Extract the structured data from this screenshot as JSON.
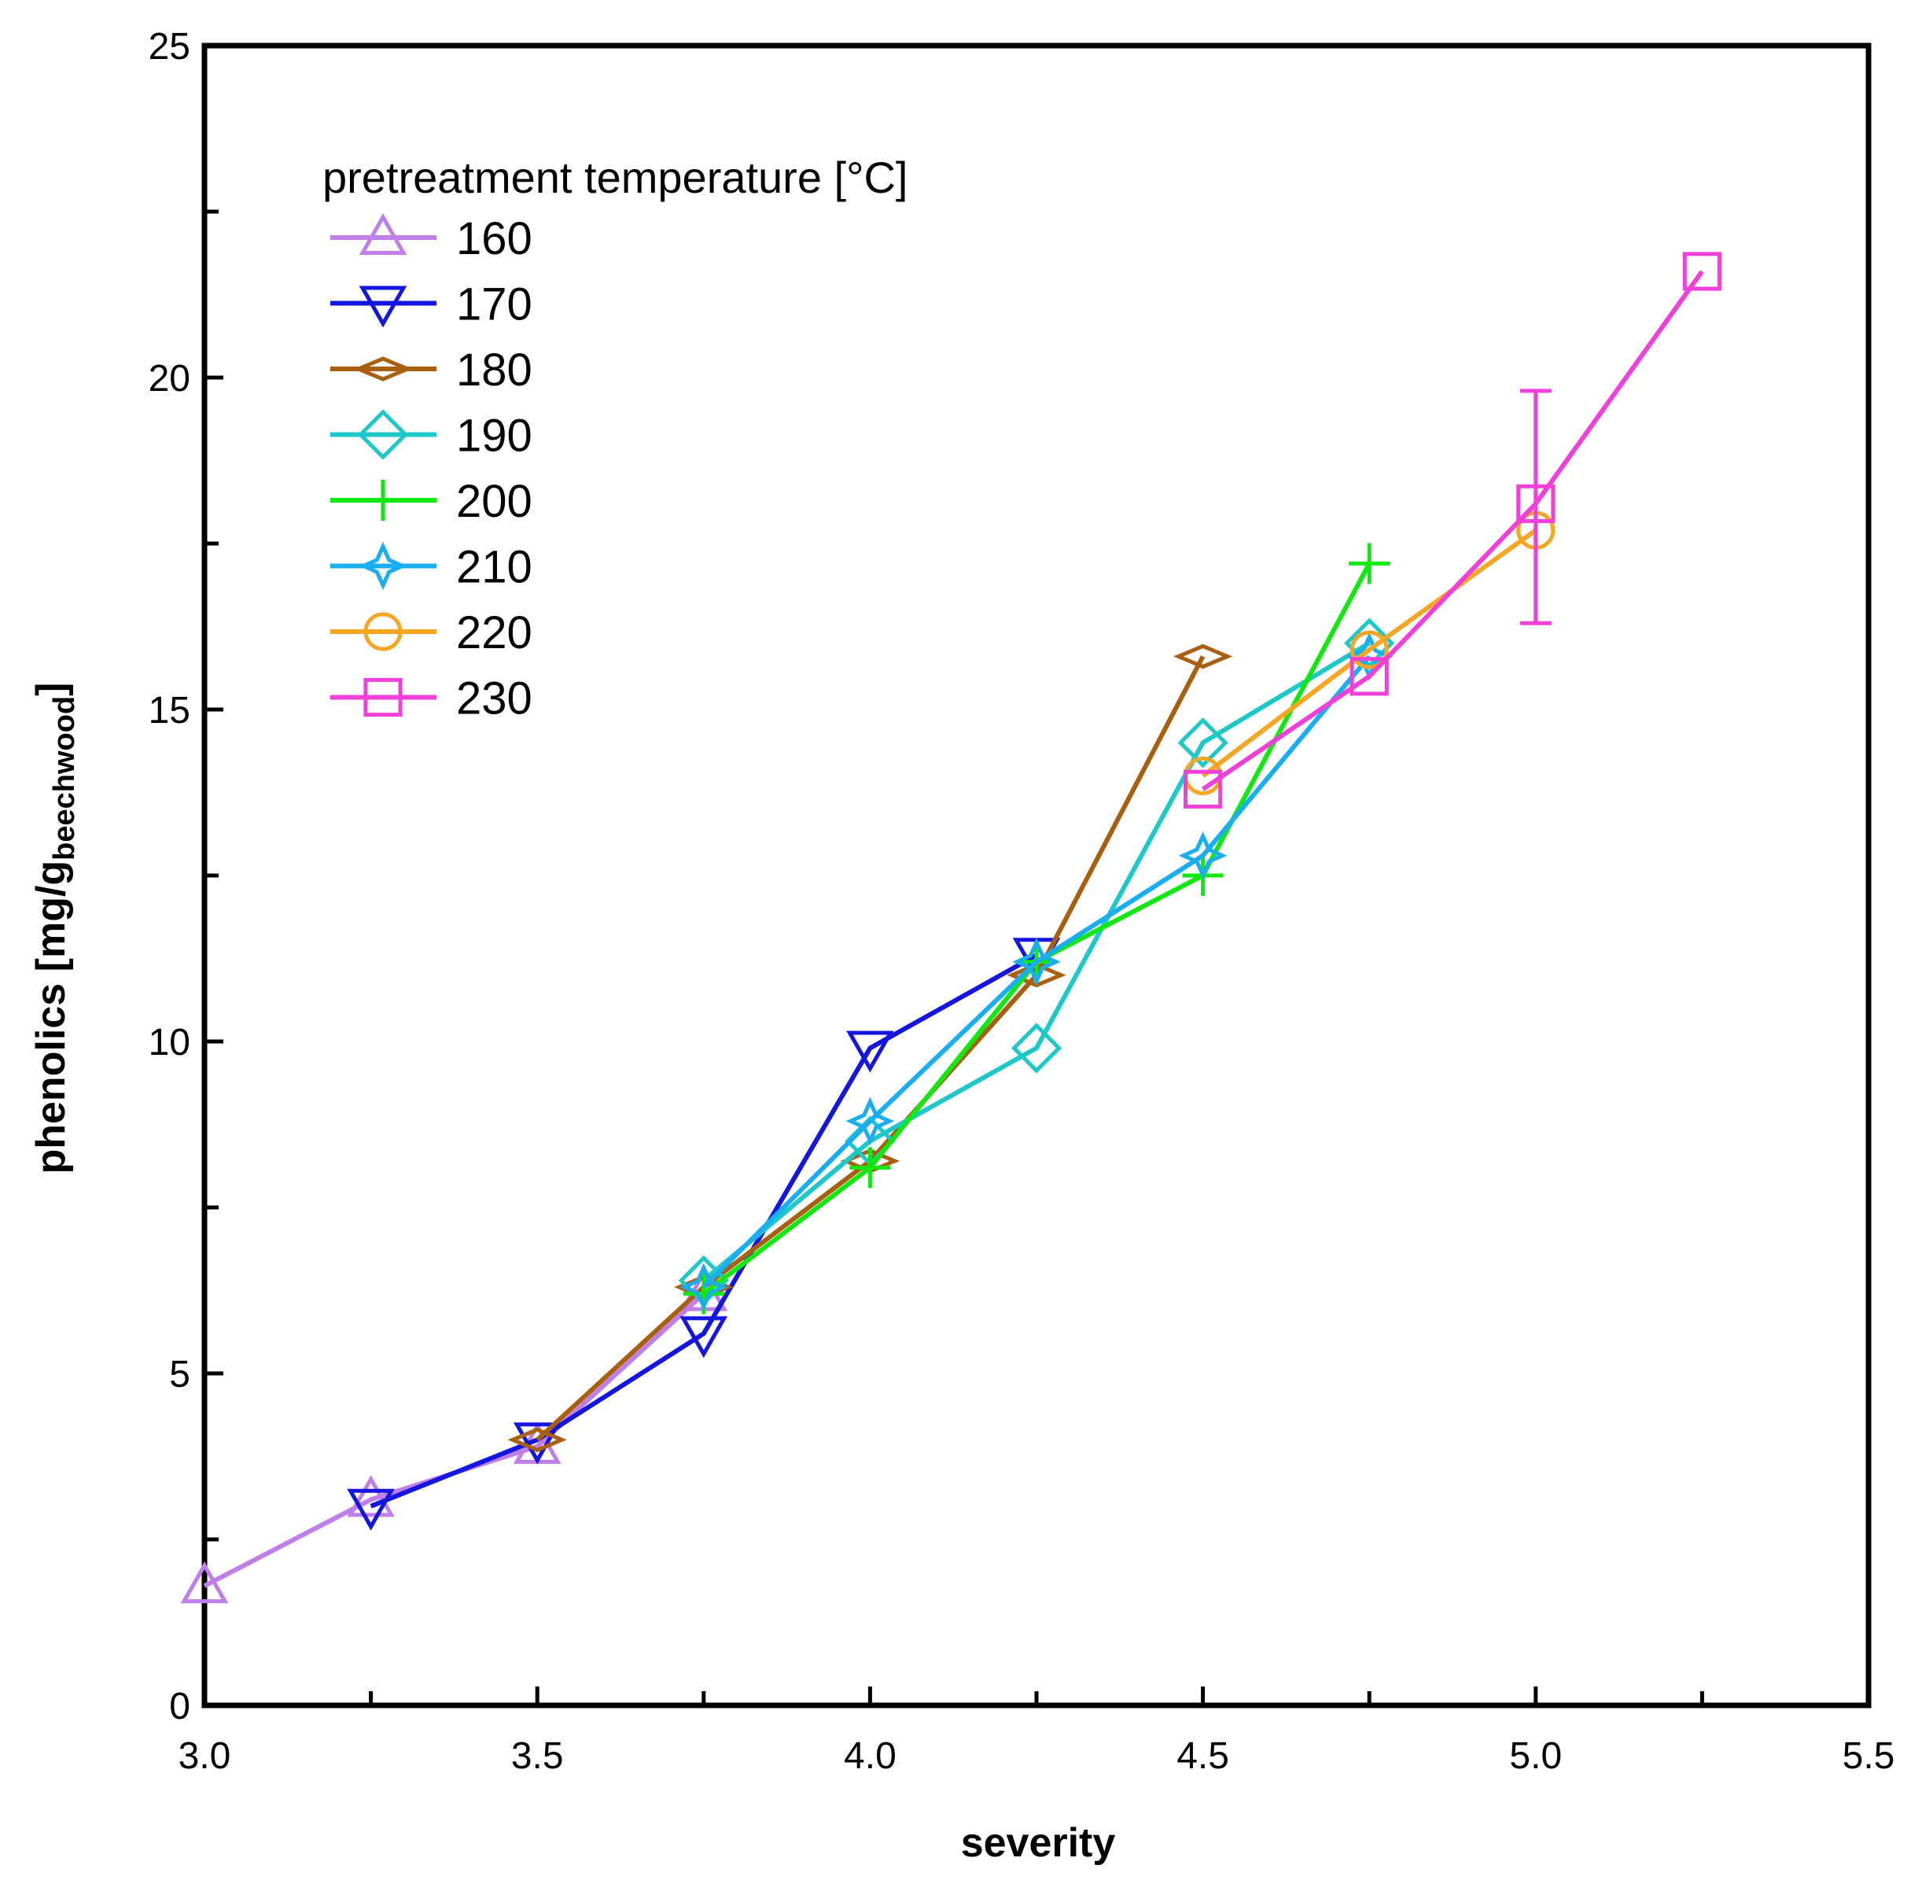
{
  "chart_data": {
    "type": "line",
    "title": "",
    "xlabel": "severity",
    "ylabel": {
      "main": "phenolics  [mg/g",
      "sub": "beechwood",
      "close": "]"
    },
    "xlim": [
      3.0,
      5.5
    ],
    "ylim": [
      0,
      25
    ],
    "x_ticks": [
      "3.0",
      "3.5",
      "4.0",
      "4.5",
      "5.0",
      "5.5"
    ],
    "y_ticks": [
      "0",
      "5",
      "10",
      "15",
      "20",
      "25"
    ],
    "grid": false,
    "legend": {
      "title": "pretreatment temperature [°C]",
      "position": "top-left"
    },
    "series": [
      {
        "name": "160",
        "color": "#bf7ee8",
        "marker": "triangle-up",
        "x": [
          3.0,
          3.25,
          3.5,
          3.75
        ],
        "y": [
          1.8,
          3.1,
          3.9,
          6.2
        ]
      },
      {
        "name": "170",
        "color": "#1515e0",
        "marker": "triangle-down",
        "x": [
          3.25,
          3.5,
          3.75,
          4.0,
          4.25
        ],
        "y": [
          3.0,
          4.0,
          5.6,
          9.9,
          11.3
        ]
      },
      {
        "name": "180",
        "color": "#a86010",
        "marker": "thin-diamond",
        "x": [
          3.5,
          3.75,
          4.0,
          4.25,
          4.5
        ],
        "y": [
          4.0,
          6.3,
          8.2,
          11.0,
          15.8
        ]
      },
      {
        "name": "190",
        "color": "#1ec8c8",
        "marker": "diamond",
        "x": [
          3.75,
          4.0,
          4.25,
          4.5,
          4.75
        ],
        "y": [
          6.4,
          8.5,
          9.9,
          14.5,
          16.0
        ]
      },
      {
        "name": "200",
        "color": "#10e810",
        "marker": "plus",
        "x": [
          3.75,
          4.0,
          4.25,
          4.5,
          4.75
        ],
        "y": [
          6.2,
          8.1,
          11.2,
          12.5,
          17.2
        ]
      },
      {
        "name": "210",
        "color": "#19aef0",
        "marker": "star",
        "x": [
          3.75,
          4.0,
          4.25,
          4.5,
          4.75
        ],
        "y": [
          6.3,
          8.8,
          11.2,
          12.8,
          15.8
        ]
      },
      {
        "name": "220",
        "color": "#f5a623",
        "marker": "circle",
        "x": [
          4.5,
          4.75,
          5.0
        ],
        "y": [
          14.0,
          15.9,
          17.7
        ]
      },
      {
        "name": "230",
        "color": "#f040d8",
        "marker": "square",
        "x": [
          4.5,
          4.75,
          5.0,
          5.25
        ],
        "y": [
          13.8,
          15.5,
          18.1,
          21.6
        ],
        "error_bars": [
          {
            "x": 5.0,
            "low": 16.3,
            "high": 19.8
          }
        ]
      }
    ]
  }
}
